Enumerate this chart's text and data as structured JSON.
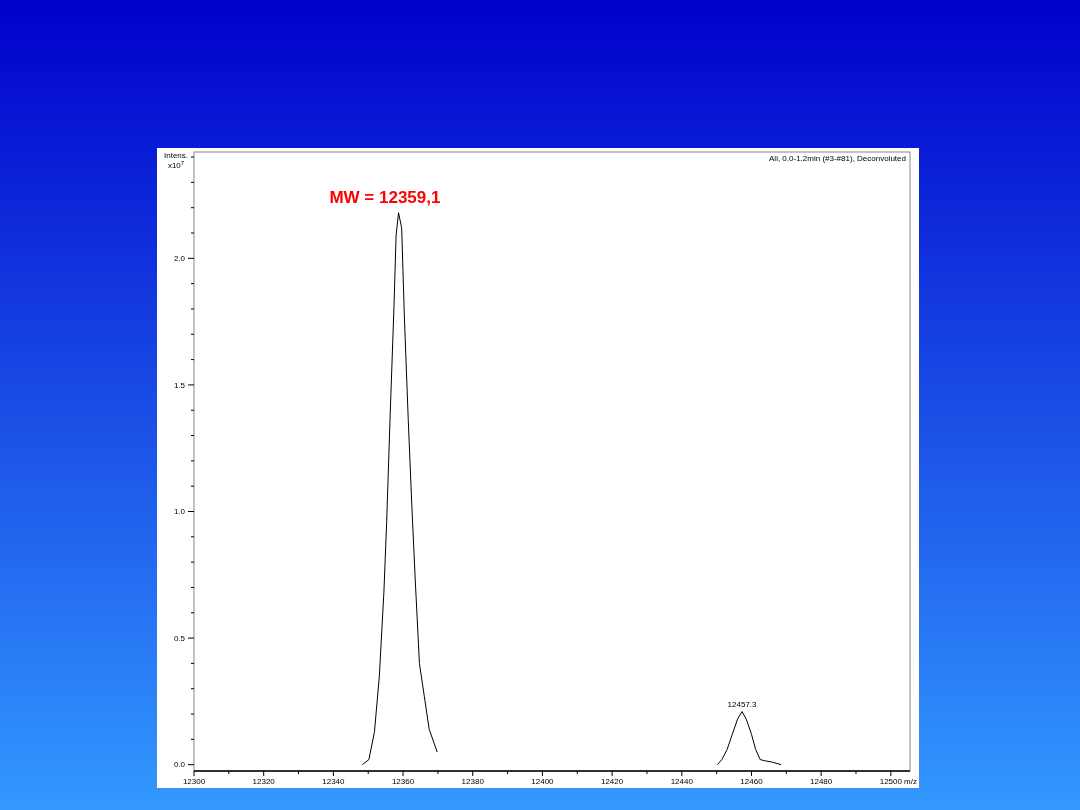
{
  "chart_data": {
    "type": "line",
    "ylabel": "Intens.\nx10$^{7}$",
    "xlabel": "m/z",
    "grid": false,
    "marker": "none",
    "line_style": "solid",
    "xlim": [
      12300,
      12505.5
    ],
    "ylim": [
      -0.025,
      2.42
    ],
    "xticks": [
      12300,
      {
        "value": 12310,
        "label": null
      },
      12320,
      {
        "value": 12330,
        "label": null
      },
      12340,
      {
        "value": 12350,
        "label": null
      },
      12360,
      {
        "value": 12370,
        "label": null
      },
      12380,
      {
        "value": 12390,
        "label": null
      },
      12400,
      {
        "value": 12410,
        "label": null
      },
      12420,
      {
        "value": 12430,
        "label": null
      },
      12440,
      {
        "value": 12450,
        "label": null
      },
      12460,
      {
        "value": 12470,
        "label": null
      },
      12480,
      {
        "value": 12490,
        "label": null
      },
      12500
    ],
    "yticks": [
      {
        "value": 0,
        "label": "0.0"
      },
      {
        "value": 0.1,
        "label": null
      },
      {
        "value": 0.2,
        "label": null
      },
      {
        "value": 0.3,
        "label": null
      },
      {
        "value": 0.4,
        "label": null
      },
      0.5,
      {
        "value": 0.6,
        "label": null
      },
      {
        "value": 0.7,
        "label": null
      },
      {
        "value": 0.8,
        "label": null
      },
      {
        "value": 0.9,
        "label": null
      },
      {
        "value": 1,
        "label": "1.0"
      },
      {
        "value": 1.1,
        "label": null
      },
      {
        "value": 1.2,
        "label": null
      },
      {
        "value": 1.3,
        "label": null
      },
      {
        "value": 1.4,
        "label": null
      },
      1.5,
      {
        "value": 1.6,
        "label": null
      },
      {
        "value": 1.7,
        "label": null
      },
      {
        "value": 1.8,
        "label": null
      },
      {
        "value": 1.9,
        "label": null
      },
      {
        "value": 2,
        "label": "2.0"
      },
      {
        "value": 2.1,
        "label": null
      },
      {
        "value": 2.2,
        "label": null
      },
      {
        "value": 2.3,
        "label": null
      },
      {
        "value": 2.4,
        "label": null
      }
    ],
    "series": [
      {
        "color": "#000000",
        "x": [
          12348.3,
          12350.2,
          12351.8,
          12353.2,
          12354.5,
          12355.3,
          12356.3,
          12357.4,
          12358.0,
          12358.7,
          12359.6,
          12360.4,
          12361.5,
          12362.5,
          12363.5,
          12364.7,
          12366.1,
          12367.5,
          12369.8
        ],
        "values": [
          0,
          0.02,
          0.13,
          0.35,
          0.68,
          0.96,
          1.38,
          1.81,
          2.09,
          2.18,
          2.12,
          1.76,
          1.36,
          1.03,
          0.73,
          0.4,
          0.27,
          0.14,
          0.05
        ]
      },
      {
        "color": "#000000",
        "x": [
          12450.2,
          12451.5,
          12453,
          12454.5,
          12456,
          12457.3,
          12458.5,
          12460,
          12461.2,
          12462.5,
          12464,
          12466,
          12468.5
        ],
        "values": [
          0,
          0.02,
          0.06,
          0.12,
          0.18,
          0.21,
          0.18,
          0.12,
          0.06,
          0.02,
          0.015,
          0.01,
          0
        ]
      }
    ],
    "annotations": [
      {
        "text": "MW = 12359,1",
        "x": 12359.1,
        "y": 2.18
      },
      {
        "text": "12457.3",
        "x": 12457.3,
        "y": 0.21
      },
      "All, 0.0-1.2min (#3-#81), Deconvoluted"
    ]
  }
}
